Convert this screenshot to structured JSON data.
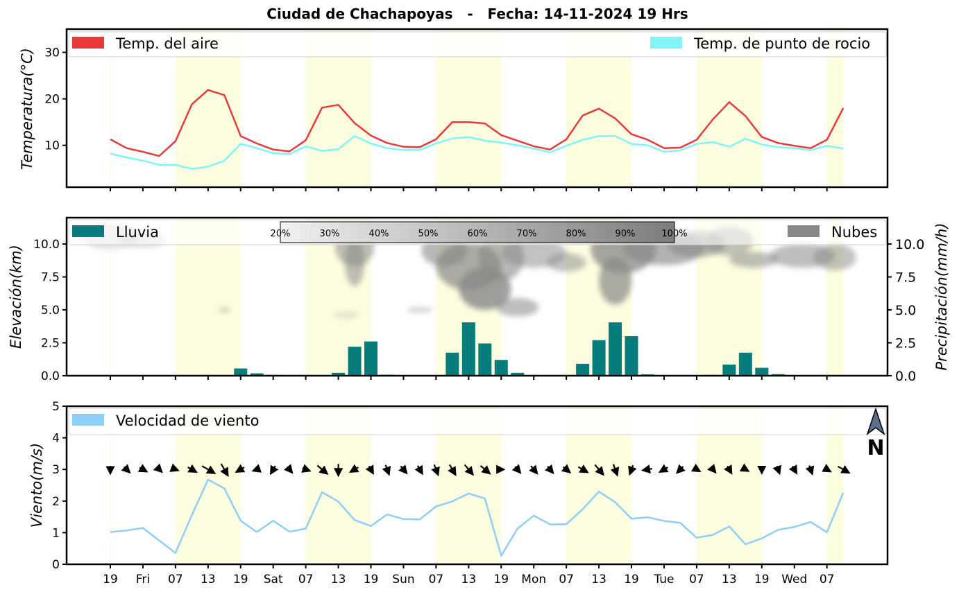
{
  "title": "Ciudad de Chachapoyas   -   Fecha: 14-11-2024 19 Hrs",
  "colors": {
    "temp": "#e83a3a",
    "dew": "#7ff5f5",
    "rain": "#057d7d",
    "clouds": "#888888",
    "wind": "#8ecff9",
    "night": "#fdfde0"
  },
  "x_tick_labels": [
    "19",
    "Fri",
    "07",
    "13",
    "19",
    "Sat",
    "07",
    "13",
    "19",
    "Sun",
    "07",
    "13",
    "19",
    "Mon",
    "07",
    "13",
    "19",
    "Tue",
    "07",
    "13",
    "19",
    "Wed",
    "07"
  ],
  "chart_data": [
    {
      "type": "line",
      "ylabel": "Temperatura(°C)",
      "ylim": [
        1,
        35
      ],
      "yticks": [
        "10",
        "20",
        "30"
      ],
      "legend_placement": "top",
      "series": [
        {
          "name": "Temp. del aire",
          "values": [
            11.3,
            9.4,
            8.6,
            7.7,
            10.9,
            18.8,
            21.9,
            20.8,
            12.0,
            10.4,
            9.1,
            8.7,
            11.1,
            18.1,
            18.7,
            14.8,
            12.1,
            10.5,
            9.7,
            9.6,
            11.3,
            15.0,
            15.0,
            14.7,
            12.2,
            11.0,
            9.8,
            9.1,
            11.3,
            16.4,
            17.9,
            15.8,
            12.4,
            11.2,
            9.4,
            9.5,
            11.2,
            15.6,
            19.3,
            16.3,
            11.8,
            10.5,
            9.9,
            9.4,
            11.2,
            18.0
          ]
        },
        {
          "name": "Temp. de punto de rocio",
          "values": [
            8.2,
            7.4,
            6.7,
            5.8,
            5.8,
            4.9,
            5.4,
            6.7,
            10.3,
            9.4,
            8.3,
            8.1,
            9.8,
            8.8,
            9.2,
            12.0,
            10.4,
            9.4,
            9.0,
            9.0,
            10.4,
            11.5,
            11.8,
            11.0,
            10.6,
            10.0,
            9.3,
            8.5,
            9.9,
            11.2,
            12.0,
            12.0,
            10.3,
            10.0,
            8.6,
            8.9,
            10.3,
            10.7,
            9.7,
            11.4,
            10.2,
            9.6,
            9.4,
            9.0,
            9.9,
            9.3
          ]
        }
      ]
    },
    {
      "type": "bar",
      "ylabel": "Elevación(km)",
      "ylabel_right": "Precipitación(mm/h)",
      "ylim": [
        0,
        12
      ],
      "yticks_left": [
        "0.0",
        "2.5",
        "5.0",
        "7.5",
        "10.0"
      ],
      "yticks_right": [
        "0.0",
        "2.5",
        "5.0",
        "7.5",
        "10.0"
      ],
      "legend": [
        "Lluvia",
        "Nubes"
      ],
      "colorbar_labels": [
        "20%",
        "30%",
        "40%",
        "50%",
        "60%",
        "70%",
        "80%",
        "90%",
        "100%"
      ],
      "series": [
        {
          "name": "Lluvia",
          "values": [
            0,
            0,
            0,
            0,
            0,
            0,
            0,
            0.03,
            0.55,
            0.18,
            0.06,
            0.05,
            0.04,
            0.03,
            0.22,
            2.2,
            2.6,
            0.08,
            0.05,
            0.03,
            0.04,
            1.75,
            4.05,
            2.45,
            1.2,
            0.22,
            0.02,
            0.02,
            0.02,
            0.9,
            2.7,
            4.05,
            3.0,
            0.1,
            0.02,
            0.02,
            0.03,
            0.06,
            0.85,
            1.75,
            0.6,
            0.12,
            0.03,
            0.02,
            0.02,
            0.02
          ]
        }
      ]
    },
    {
      "type": "line",
      "ylabel": "Viento(m/s)",
      "ylim": [
        0,
        5
      ],
      "yticks": [
        "0",
        "1",
        "2",
        "3",
        "4",
        "5"
      ],
      "legend_placement": "top-left",
      "north_label": "N",
      "series": [
        {
          "name": "Velocidad de viento",
          "values": [
            1.02,
            1.07,
            1.15,
            0.75,
            0.36,
            1.55,
            2.68,
            2.4,
            1.38,
            1.02,
            1.38,
            1.03,
            1.13,
            2.28,
            1.98,
            1.4,
            1.21,
            1.58,
            1.43,
            1.42,
            1.83,
            1.99,
            2.24,
            2.08,
            0.27,
            1.13,
            1.54,
            1.26,
            1.27,
            1.74,
            2.3,
            1.96,
            1.44,
            1.49,
            1.37,
            1.31,
            0.84,
            0.93,
            1.2,
            0.63,
            0.82,
            1.09,
            1.18,
            1.34,
            1.01,
            2.26
          ]
        }
      ],
      "wind_direction_deg": [
        0,
        315,
        300,
        315,
        290,
        300,
        300,
        330,
        60,
        70,
        30,
        320,
        290,
        310,
        0,
        60,
        330,
        340,
        320,
        330,
        340,
        330,
        320,
        310,
        270,
        320,
        320,
        320,
        310,
        300,
        320,
        340,
        20,
        80,
        60,
        45,
        300,
        320,
        330,
        300,
        0,
        340,
        330,
        340,
        300,
        300
      ]
    }
  ]
}
